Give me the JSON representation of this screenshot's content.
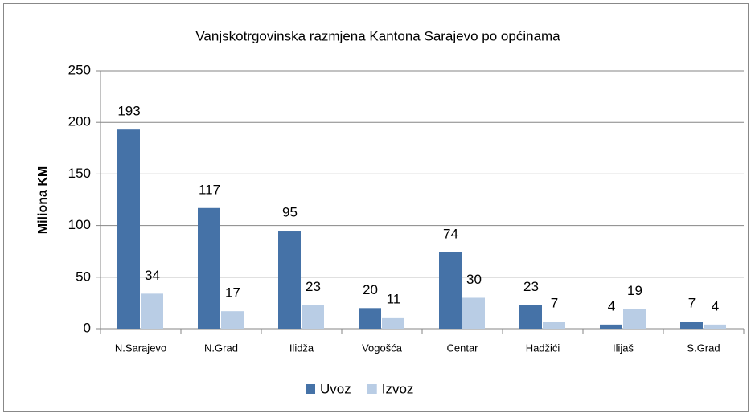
{
  "chart_data": {
    "type": "bar",
    "title": "Vanjskotrgovinska razmjena Kantona Sarajevo po općinama",
    "y_label": "Miliona KM",
    "categories": [
      "N.Sarajevo",
      "N.Grad",
      "Ilidža",
      "Vogošća",
      "Centar",
      "Hadžići",
      "Ilijaš",
      "S.Grad"
    ],
    "series": [
      {
        "name": "Uvoz",
        "color": "#4572a7",
        "values": [
          193,
          117,
          95,
          20,
          74,
          23,
          4,
          7
        ]
      },
      {
        "name": "Izvoz",
        "color": "#b9cde5",
        "values": [
          34,
          17,
          23,
          11,
          30,
          7,
          19,
          4
        ]
      }
    ],
    "ylim": [
      0,
      250
    ],
    "yticks": [
      0,
      50,
      100,
      150,
      200,
      250
    ],
    "grid": true,
    "legend": "bottom"
  }
}
